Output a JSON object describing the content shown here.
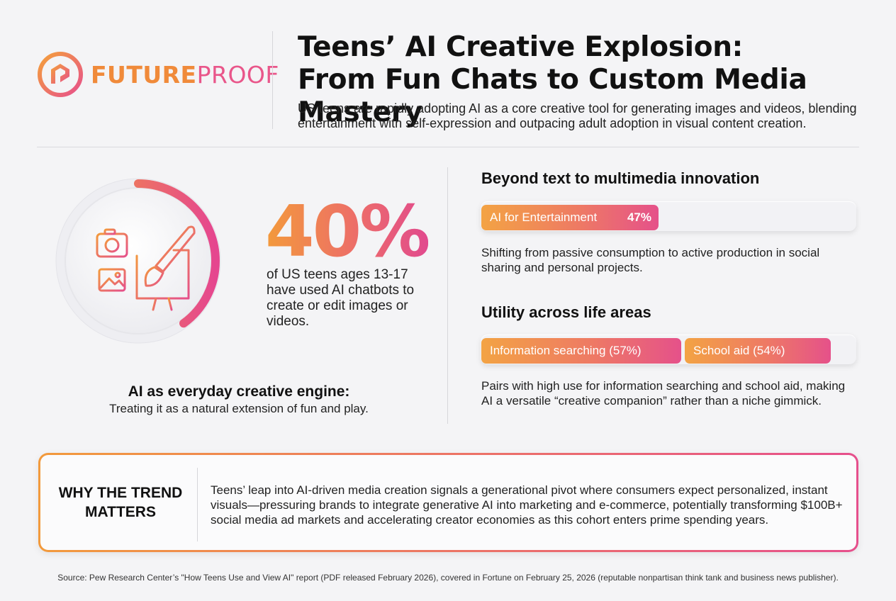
{
  "brand": {
    "name_part1": "FUTURE",
    "name_part2": "PROOF",
    "colors": {
      "orange": "#f08a3a",
      "pink": "#e9568a"
    }
  },
  "header": {
    "title_line1": "Teens’ AI Creative Explosion:",
    "title_line2": "From Fun Chats to Custom Media Mastery",
    "subtitle": "US teens are rapidly adopting AI as a core creative tool for generating images and videos, blending entertainment with self-expression and outpacing adult adoption in visual content creation."
  },
  "stat": {
    "value": "40%",
    "progress": 0.4,
    "description": "of US teens ages 13-17 have used AI chatbots to create or edit images or videos.",
    "icon": "camera-image-brush-monitor-icon"
  },
  "engine": {
    "title": "AI as everyday creative engine:",
    "subtitle": "Treating it as a natural extension of fun and play."
  },
  "multimedia": {
    "title": "Beyond text to multimedia innovation",
    "bar_label": "AI for Entertainment",
    "bar_value": "47%",
    "bar_fraction": 0.47,
    "description": "Shifting from passive consumption to active production in social sharing and personal projects."
  },
  "utility": {
    "title": "Utility across life areas",
    "bars": [
      {
        "label": "Information searching (57%)",
        "fraction": 0.57
      },
      {
        "label": "School aid (54%)",
        "fraction": 0.54
      }
    ],
    "description": "Pairs with high use for information searching and school aid, making AI a versatile “creative companion” rather than a niche gimmick."
  },
  "matters": {
    "label_line1": "WHY THE TREND",
    "label_line2": "MATTERS",
    "text": "Teens’ leap into AI-driven media creation signals a generational pivot where consumers expect personalized, instant visuals—pressuring brands to integrate generative AI into marketing and e-commerce, potentially transforming $100B+ social media ad markets and accelerating creator economies as this cohort enters prime spending years."
  },
  "source": "Source: Pew Research Center’s \"How Teens Use and View AI\" report (PDF released February 2026), covered in Fortune on February 25, 2026 (reputable nonpartisan think tank and business news publisher)."
}
